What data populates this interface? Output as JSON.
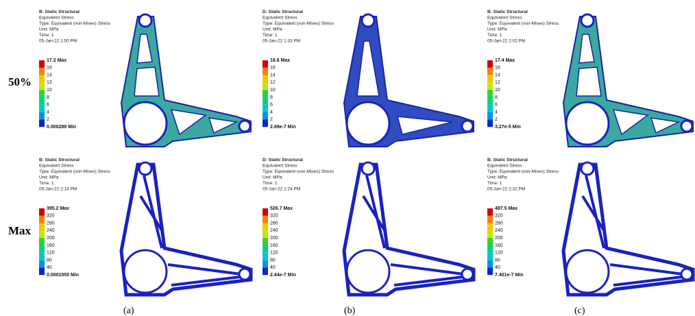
{
  "rows": [
    "50%",
    "Max"
  ],
  "columns": [
    "(a)",
    "(b)",
    "(c)"
  ],
  "panels": [
    {
      "header": [
        "B: Static Structural",
        "Equivalent Stress",
        "Type: Equivalent (von-Mises) Stress",
        "Unit: MPa",
        "Time: 1",
        "05-Jan-22 1:50 PM"
      ],
      "legend": [
        "17.2 Max",
        "16",
        "14",
        "12",
        "10",
        "8",
        "6",
        "4",
        "2",
        "0.000289 Min"
      ]
    },
    {
      "header": [
        "D: Static Structural",
        "Equivalent Stress",
        "Type: Equivalent (von-Mises) Stress",
        "Unit: MPa",
        "Time: 1",
        "05-Jan-22 1:33 PM"
      ],
      "legend": [
        "18.6 Max",
        "16",
        "14",
        "12",
        "10",
        "8",
        "6",
        "4",
        "2",
        "2.69e-7 Min"
      ]
    },
    {
      "header": [
        "B: Static Structural",
        "Equivalent Stress",
        "Type: Equivalent (von-Mises) Stress",
        "Unit: MPa",
        "Time: 1",
        "05-Jan-22 2:02 PM"
      ],
      "legend": [
        "17.4 Max",
        "16",
        "14",
        "12",
        "10",
        "8",
        "6",
        "4",
        "2",
        "3.27e-5 Min"
      ]
    },
    {
      "header": [
        "B: Static Structural",
        "Equivalent Stress",
        "Type: Equivalent (von-Mises) Stress",
        "Unit: MPa",
        "Time: 1",
        "05-Jan-22 2:14 PM"
      ],
      "legend": [
        "395.2 Max",
        "320",
        "280",
        "240",
        "200",
        "160",
        "120",
        "80",
        "40",
        "0.0001555 Min"
      ]
    },
    {
      "header": [
        "D: Static Structural",
        "Equivalent Stress",
        "Type: Equivalent (von-Mises) Stress",
        "Unit: MPa",
        "Time: 1",
        "05-Jan-22 2:24 PM"
      ],
      "legend": [
        "526.7 Max",
        "320",
        "280",
        "240",
        "200",
        "160",
        "120",
        "80",
        "40",
        "2.44e-7 Min"
      ]
    },
    {
      "header": [
        "B: Static Structural",
        "Equivalent Stress",
        "Type: Equivalent (von-Mises) Stress",
        "Unit: MPa",
        "Time: 1",
        "05-Jan-22 2:32 PM"
      ],
      "legend": [
        "487.5 Max",
        "320",
        "280",
        "240",
        "200",
        "160",
        "120",
        "80",
        "40",
        "7.401e-7 Min"
      ]
    }
  ]
}
